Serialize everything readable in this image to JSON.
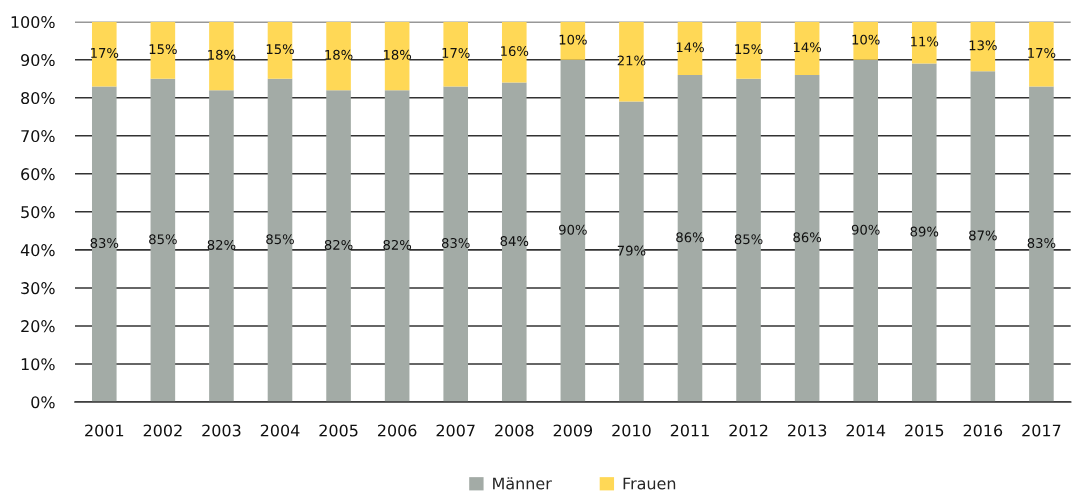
{
  "chart_data": {
    "type": "bar",
    "stacked": true,
    "categories": [
      "2001",
      "2002",
      "2003",
      "2004",
      "2005",
      "2006",
      "2007",
      "2008",
      "2009",
      "2010",
      "2011",
      "2012",
      "2013",
      "2014",
      "2015",
      "2016",
      "2017"
    ],
    "series": [
      {
        "name": "Männer",
        "color": "#a3aba6",
        "values": [
          83,
          85,
          82,
          85,
          82,
          82,
          83,
          84,
          90,
          79,
          86,
          85,
          86,
          90,
          89,
          87,
          83
        ],
        "value_labels": [
          "83%",
          "85%",
          "82%",
          "85%",
          "82%",
          "82%",
          "83%",
          "84%",
          "90%",
          "79%",
          "86%",
          "85%",
          "86%",
          "90%",
          "89%",
          "87%",
          "83%"
        ]
      },
      {
        "name": "Frauen",
        "color": "#ffd856",
        "values": [
          17,
          15,
          18,
          15,
          18,
          18,
          17,
          16,
          10,
          21,
          14,
          15,
          14,
          10,
          11,
          13,
          17
        ],
        "value_labels": [
          "17%",
          "15%",
          "18%",
          "15%",
          "18%",
          "18%",
          "17%",
          "16%",
          "10%",
          "21%",
          "14%",
          "15%",
          "14%",
          "10%",
          "11%",
          "13%",
          "17%"
        ]
      }
    ],
    "ylim": [
      0,
      100
    ],
    "yticks": [
      {
        "value": 0,
        "label": "0%"
      },
      {
        "value": 10,
        "label": "10%"
      },
      {
        "value": 20,
        "label": "20%"
      },
      {
        "value": 30,
        "label": "30%"
      },
      {
        "value": 40,
        "label": "40%"
      },
      {
        "value": 50,
        "label": "50%"
      },
      {
        "value": 60,
        "label": "60%"
      },
      {
        "value": 70,
        "label": "70%"
      },
      {
        "value": 80,
        "label": "80%"
      },
      {
        "value": 90,
        "label": "90%"
      },
      {
        "value": 100,
        "label": "100%"
      }
    ],
    "grid": "y",
    "legend": "bottom"
  }
}
